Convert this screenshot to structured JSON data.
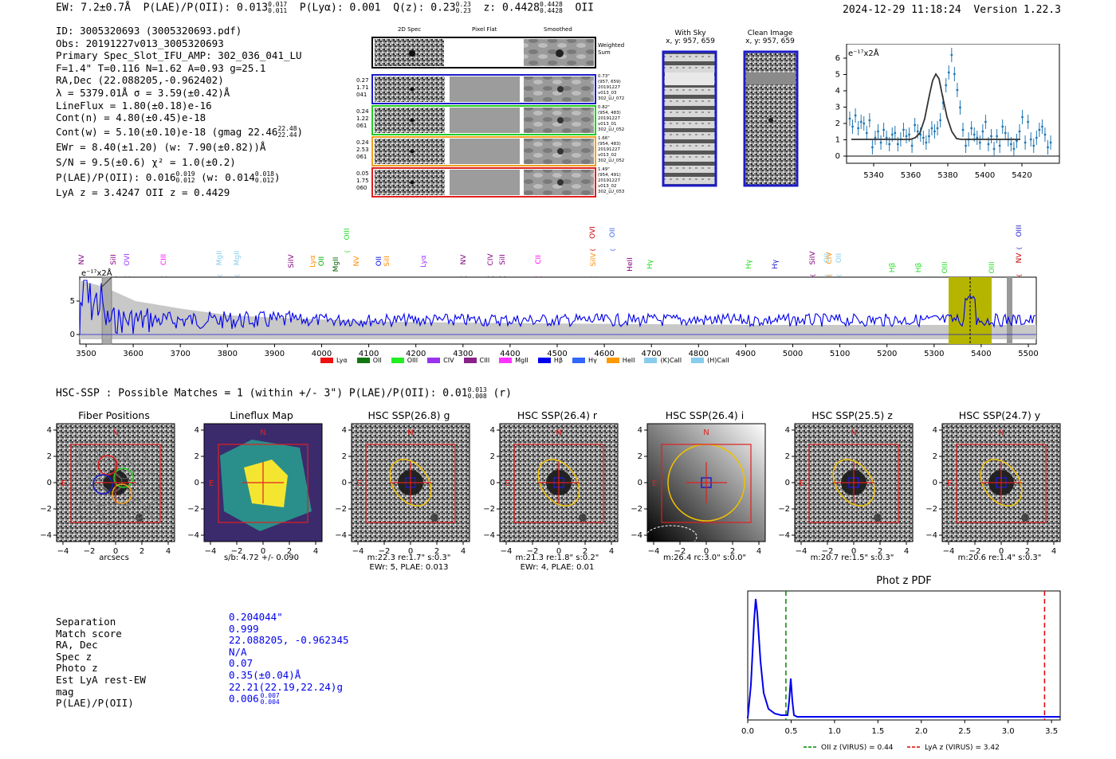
{
  "header": {
    "ew": "EW: 7.2±0.7Å",
    "plae_label": "P(LAE)/P(OII): 0.013",
    "plae_sup": "0.017",
    "plae_sub": "0.011",
    "plya": "P(Lyα): 0.001",
    "qz": "Q(z): 0.23",
    "qz_sup": "0.23",
    "qz_sub": "0.23",
    "z": "z: 0.4428",
    "z_sup": "0.4428",
    "z_sub": "0.4428",
    "z_line": "OII",
    "timestamp": "2024-12-29 11:18:24",
    "version": "Version 1.22.3"
  },
  "info": {
    "lines": [
      "ID: 3005320693 (3005320693.pdf)",
      "Obs: 20191227v013_3005320693",
      "Primary Spec_Slot_IFU_AMP: 302_036_041_LU",
      "F=1.4\"  T=0.116  N=1.62  A=0.93  g=25.1",
      "RA,Dec (22.088205,-0.962402)",
      "λ = 5379.01Å  σ = 3.59(±0.42)Å",
      "LineFlux = 1.80(±0.18)e-16",
      "Cont(n) = 4.80(±0.45)e-18"
    ],
    "contw": "Cont(w) = 5.10(±0.10)e-18 (gmag 22.46",
    "contw_sup": "22.48",
    "contw_sub": "22.44",
    "ewr": "EWr = 8.40(±1.20) (w: 7.90(±0.82))Å",
    "sn": "S/N = 9.5(±0.6)  χ² = 1.0(±0.2)",
    "plae": "P(LAE)/P(OII): 0.016",
    "plae_sup": "0.019",
    "plae_sub": "0.012",
    "plae_w": "(w: 0.014",
    "plae_w_sup": "0.018",
    "plae_w_sub": "0.012",
    "lyaz": "LyA z = 3.4247   OII z = 0.4429"
  },
  "cutouts": {
    "headers": [
      "2D Spec",
      "Pixel Flat",
      "Smoothed"
    ],
    "weighted": "Weighted Sum",
    "rows": [
      {
        "nums": [
          "0.27",
          "1.71",
          "041"
        ],
        "meta": [
          "0.73\"",
          "(957, 659)",
          "20191227",
          "v013_03",
          "302_LU_072"
        ],
        "color": "#1c1cc8"
      },
      {
        "nums": [
          "0.24",
          "1.22",
          "061"
        ],
        "meta": [
          "0.82\"",
          "(954, 483)",
          "20191227",
          "v013_01",
          "302_LU_052"
        ],
        "color": "#22cc22"
      },
      {
        "nums": [
          "0.24",
          "2.53",
          "061"
        ],
        "meta": [
          "1.66\"",
          "(954, 483)",
          "20191227",
          "v013_02",
          "302_LU_052"
        ],
        "color": "#f0a020"
      },
      {
        "nums": [
          "0.05",
          "1.75",
          "060"
        ],
        "meta": [
          "1.49\"",
          "(954, 491)",
          "20191227",
          "v013_02",
          "302_LU_053"
        ],
        "color": "#e02020"
      }
    ]
  },
  "sky": {
    "with_sky": "With Sky",
    "with_sky_xy": "x, y: 957, 659",
    "clean": "Clean Image",
    "clean_xy": "x, y: 957, 659"
  },
  "line_fit": {
    "ylabel": "e⁻¹⁷x2Å",
    "xticks": [
      "5340",
      "5360",
      "5380",
      "5400",
      "5420"
    ],
    "yticks": [
      "0",
      "1",
      "2",
      "3",
      "4",
      "5",
      "6"
    ]
  },
  "spectrum": {
    "ylabel": "e⁻¹⁷x2Å",
    "xticks": [
      "3500",
      "3600",
      "3700",
      "3800",
      "3900",
      "4000",
      "4100",
      "4200",
      "4300",
      "4400",
      "4500",
      "4600",
      "4700",
      "4800",
      "4900",
      "5000",
      "5100",
      "5200",
      "5300",
      "5400",
      "5500"
    ],
    "yticks": [
      "0",
      "5"
    ],
    "line_labels": [
      {
        "t": "NV",
        "c": "#800080"
      },
      {
        "t": "SiII",
        "c": "#800080"
      },
      {
        "t": "OVI",
        "c": "#9933ff"
      },
      {
        "t": "CIII",
        "c": "#ff00ff"
      },
      {
        "t": "MgII",
        "c": "#87ceeb"
      },
      {
        "t": "MgII",
        "c": "#87ceeb"
      },
      {
        "t": "SiIV",
        "c": "#800080"
      },
      {
        "t": "Lyα",
        "c": "#ff8c00"
      },
      {
        "t": "OII",
        "c": "#00aa00"
      },
      {
        "t": "MgII",
        "c": "#006400"
      },
      {
        "t": "OIII",
        "c": "#22dd22"
      },
      {
        "t": "NV",
        "c": "#ff8c00"
      },
      {
        "t": "OII",
        "c": "#0000ee"
      },
      {
        "t": "SiII",
        "c": "#ff8c00"
      },
      {
        "t": "Lyα",
        "c": "#9933ff"
      },
      {
        "t": "NV",
        "c": "#800080"
      },
      {
        "t": "CIV",
        "c": "#800080"
      },
      {
        "t": "SiII",
        "c": "#800080"
      },
      {
        "t": "CII",
        "c": "#ff00ff"
      },
      {
        "t": "SiIV",
        "c": "#ff8c00"
      },
      {
        "t": "OVI",
        "c": "#cc0000"
      },
      {
        "t": "OII",
        "c": "#4169e1"
      },
      {
        "t": "HeII",
        "c": "#800080"
      },
      {
        "t": "Hγ",
        "c": "#22dd22"
      },
      {
        "t": "Hγ",
        "c": "#22dd22"
      },
      {
        "t": "Hγ",
        "c": "#1c1cc8"
      },
      {
        "t": "SiIV",
        "c": "#800080"
      },
      {
        "t": "OII",
        "c": "#87ceeb"
      },
      {
        "t": "CIV",
        "c": "#ff8c00"
      },
      {
        "t": "OII",
        "c": "#87ceeb"
      },
      {
        "t": "Hβ",
        "c": "#22dd22"
      },
      {
        "t": "Hβ",
        "c": "#22dd22"
      },
      {
        "t": "OIII",
        "c": "#22dd22"
      },
      {
        "t": "OIII",
        "c": "#22dd22"
      },
      {
        "t": "OIII",
        "c": "#1c1cc8"
      },
      {
        "t": "NV",
        "c": "#cc0000"
      }
    ],
    "legend": [
      {
        "t": "Lyα",
        "c": "#ee1111"
      },
      {
        "t": "OII",
        "c": "#117711"
      },
      {
        "t": "OIII",
        "c": "#22ee22"
      },
      {
        "t": "CIV",
        "c": "#9933ee"
      },
      {
        "t": "CIII",
        "c": "#882288"
      },
      {
        "t": "MgII",
        "c": "#ff33ff"
      },
      {
        "t": "Hβ",
        "c": "#0000ee"
      },
      {
        "t": "Hγ",
        "c": "#3366ff"
      },
      {
        "t": "HeII",
        "c": "#ff9900"
      },
      {
        "t": "(K)CaII",
        "c": "#88ccee"
      },
      {
        "t": "(H)CaII",
        "c": "#88ccee"
      }
    ]
  },
  "hsc": {
    "summary": "HSC-SSP : Possible Matches = 1 (within +/- 3\")  P(LAE)/P(OII): 0.01",
    "summary_sup": "0.013",
    "summary_sub": "0.008",
    "summary_tail": "(r)",
    "panels": [
      {
        "title": "Fiber Positions",
        "cap1": "arcsecs",
        "cap2": ""
      },
      {
        "title": "Lineflux Map",
        "cap1": "s/b: 4.72 +/- 0.090",
        "cap2": ""
      },
      {
        "title": "HSC SSP(26.8) g",
        "cap1": "m:22.3  re:1.7\"  s:0.3\"",
        "cap2": "EWr: 5, PLAE: 0.013"
      },
      {
        "title": "HSC SSP(26.4) r",
        "cap1": "m:21.3  re:1.8\"  s:0.2\"",
        "cap2": "EWr: 4, PLAE: 0.01"
      },
      {
        "title": "HSC SSP(26.4) i",
        "cap1": "m:26.4 rc:3.0\"  s:0.0\"",
        "cap2": ""
      },
      {
        "title": "HSC SSP(25.5) z",
        "cap1": "m:20.7  re:1.5\"  s:0.3\"",
        "cap2": ""
      },
      {
        "title": "HSC SSP(24.7) y",
        "cap1": "m:20.6  re:1.4\"  s:0.3\"",
        "cap2": ""
      }
    ],
    "xticks": [
      "−4",
      "−2",
      "0",
      "2",
      "4"
    ],
    "yticks": [
      "4",
      "2",
      "0",
      "−2",
      "−4"
    ],
    "north": "N",
    "east": "E"
  },
  "match": {
    "labels": [
      "Separation",
      "Match score",
      "RA, Dec",
      "Spec z",
      "Photo z",
      "Est LyA rest-EW",
      "mag",
      "P(LAE)/P(OII)"
    ],
    "values": [
      "0.204044\"",
      "0.999",
      "22.088205, -0.962345",
      "N/A",
      "0.07",
      "0.35(±0.04)Å",
      "22.21(22.19,22.24)g",
      "0.006"
    ],
    "plae_sup": "0.007",
    "plae_sub": "0.004"
  },
  "photz": {
    "title": "Phot z PDF",
    "xticks": [
      "0.0",
      "0.5",
      "1.0",
      "1.5",
      "2.0",
      "2.5",
      "3.0",
      "3.5"
    ],
    "legend_oii": "OII z (VIRUS) = 0.44",
    "legend_lya": "LyA z (VIRUS) = 3.42",
    "oii_z": 0.44,
    "lya_z": 3.42,
    "colors": {
      "pdf": "#0000ee",
      "oii": "#008800",
      "lya": "#dd0000"
    }
  }
}
